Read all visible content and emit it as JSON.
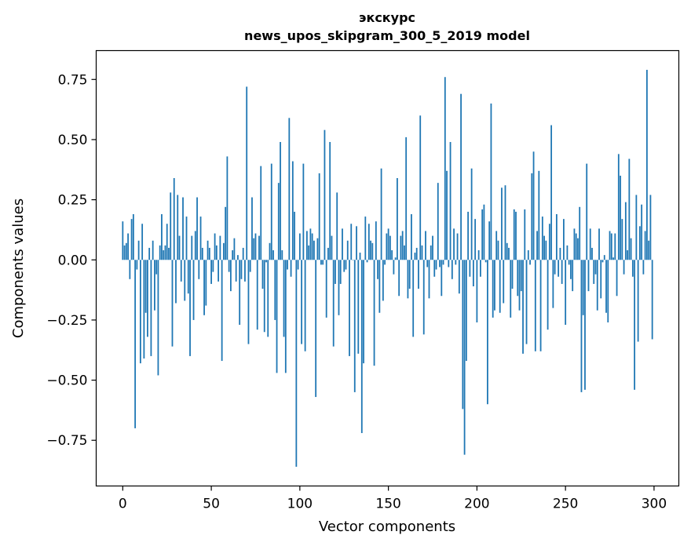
{
  "chart_data": {
    "type": "bar",
    "title": "экскурс",
    "subtitle": "news_upos_skipgram_300_5_2019 model",
    "xlabel": "Vector components",
    "ylabel": "Components values",
    "xlim": [
      -15,
      314
    ],
    "ylim": [
      -0.94,
      0.87
    ],
    "xticks": [
      0,
      50,
      100,
      150,
      200,
      250,
      300
    ],
    "xtick_labels": [
      "0",
      "50",
      "100",
      "150",
      "200",
      "250",
      "300"
    ],
    "yticks": [
      0.75,
      0.5,
      0.25,
      0.0,
      -0.25,
      -0.5,
      -0.75
    ],
    "ytick_labels": [
      "0.75",
      "0.50",
      "0.25",
      "0.00",
      "−0.25",
      "−0.50",
      "−0.75"
    ],
    "bar_color": "#1f77b4",
    "n_components": 300,
    "highlighted": {
      "0": 0.16,
      "1": 0.06,
      "2": 0.07,
      "3": 0.11,
      "4": -0.08,
      "5": 0.17,
      "6": 0.19,
      "7": -0.7,
      "8": -0.04,
      "9": 0.08,
      "10": -0.43,
      "11": 0.15,
      "12": -0.41,
      "13": -0.22,
      "14": -0.32,
      "16": -0.4,
      "17": 0.08,
      "18": -0.21,
      "20": -0.48,
      "21": 0.06,
      "22": 0.19,
      "24": 0.06,
      "27": 0.28,
      "28": -0.36,
      "29": 0.34,
      "30": -0.18,
      "31": 0.27,
      "32": 0.1,
      "33": -0.09,
      "34": 0.26,
      "35": -0.17,
      "36": 0.18,
      "37": -0.14,
      "38": -0.4,
      "39": 0.1,
      "40": -0.25,
      "41": 0.12,
      "42": 0.26,
      "43": -0.08,
      "44": 0.18,
      "45": 0.05,
      "46": -0.23,
      "47": -0.19,
      "48": 0.08,
      "51": -0.05,
      "54": -0.09,
      "56": -0.42,
      "58": 0.22,
      "59": 0.43,
      "61": -0.13,
      "62": 0.04,
      "66": -0.27,
      "68": 0.05,
      "70": 0.72,
      "71": -0.35,
      "72": -0.05,
      "73": 0.26,
      "76": -0.29,
      "78": 0.39,
      "80": -0.3,
      "82": -0.32,
      "84": 0.4,
      "85": 0.04,
      "86": -0.25,
      "87": -0.47,
      "88": 0.32,
      "89": 0.49,
      "90": 0.04,
      "91": -0.32,
      "92": -0.47,
      "94": 0.59,
      "96": 0.41,
      "97": 0.2,
      "98": -0.86,
      "100": 0.11,
      "101": -0.35,
      "102": 0.4,
      "103": -0.38,
      "104": 0.12,
      "105": 0.06,
      "108": 0.08,
      "109": -0.57,
      "110": 0.09,
      "111": 0.36,
      "114": 0.54,
      "115": -0.24,
      "116": 0.05,
      "117": 0.49,
      "119": -0.36,
      "121": 0.28,
      "122": -0.23,
      "124": 0.13,
      "127": 0.08,
      "128": -0.4,
      "129": 0.15,
      "131": -0.55,
      "133": -0.39,
      "134": 0.03,
      "135": -0.72,
      "136": -0.43,
      "137": 0.18,
      "139": 0.15,
      "141": 0.07,
      "142": -0.44,
      "143": 0.16,
      "145": -0.22,
      "146": 0.38,
      "147": -0.17,
      "150": 0.13,
      "152": 0.04,
      "155": 0.34,
      "156": -0.15,
      "158": 0.12,
      "160": 0.51,
      "161": -0.16,
      "163": 0.19,
      "164": -0.32,
      "166": 0.05,
      "168": 0.6,
      "170": -0.31,
      "171": 0.12,
      "173": -0.16,
      "175": 0.1,
      "178": 0.32,
      "180": -0.15,
      "182": 0.76,
      "183": 0.37,
      "184": -0.03,
      "185": 0.49,
      "186": -0.08,
      "189": 0.11,
      "191": 0.69,
      "192": -0.62,
      "193": -0.81,
      "194": -0.42,
      "195": 0.2,
      "197": 0.38,
      "199": 0.17,
      "200": -0.26,
      "201": 0.04,
      "202": -0.07,
      "203": 0.21,
      "204": 0.23,
      "205": -0.01,
      "206": -0.6,
      "207": 0.16,
      "208": 0.65,
      "209": -0.24,
      "210": -0.21,
      "211": 0.12,
      "212": 0.08,
      "213": -0.22,
      "214": 0.3,
      "215": -0.18,
      "216": 0.31,
      "217": 0.07,
      "219": -0.24,
      "220": -0.12,
      "221": 0.21,
      "222": 0.2,
      "224": -0.21,
      "225": -0.13,
      "226": -0.39,
      "227": 0.21,
      "228": -0.35,
      "229": 0.04,
      "230": -0.02,
      "231": 0.36,
      "232": 0.45,
      "233": -0.38,
      "234": 0.12,
      "235": 0.37,
      "236": -0.38,
      "237": 0.18,
      "238": 0.1,
      "239": 0.08,
      "240": -0.29,
      "241": 0.15,
      "242": 0.56,
      "243": -0.2,
      "245": 0.19,
      "247": 0.05,
      "248": -0.1,
      "249": 0.17,
      "250": -0.27,
      "251": 0.06,
      "254": -0.13,
      "255": 0.13,
      "256": 0.11,
      "258": 0.22,
      "259": -0.55,
      "260": -0.23,
      "261": -0.54,
      "262": 0.4,
      "263": -0.13,
      "264": 0.13,
      "265": 0.05,
      "266": -0.1,
      "267": -0.06,
      "268": -0.21,
      "269": 0.13,
      "270": -0.16,
      "272": 0.02,
      "273": -0.22,
      "274": -0.26,
      "275": 0.12,
      "276": 0.11,
      "278": 0.11,
      "279": -0.15,
      "280": 0.44,
      "281": 0.35,
      "282": 0.17,
      "283": -0.06,
      "284": 0.24,
      "285": 0.04,
      "286": 0.42,
      "287": 0.09,
      "288": -0.07,
      "289": -0.54,
      "290": 0.27,
      "291": -0.34,
      "292": 0.14,
      "293": 0.23,
      "294": -0.06,
      "295": 0.12,
      "296": 0.79,
      "297": 0.08,
      "298": 0.27,
      "299": -0.33
    }
  }
}
